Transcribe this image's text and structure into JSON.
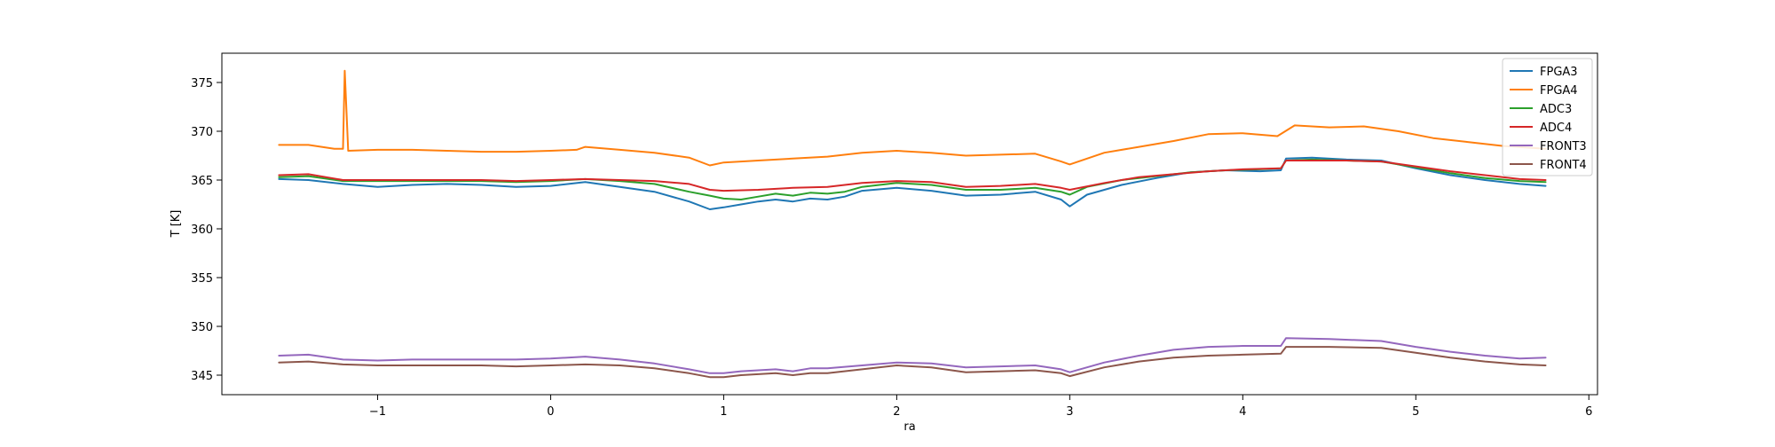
{
  "chart_data": {
    "type": "line",
    "title": "",
    "xlabel": "ra",
    "ylabel": "T [K]",
    "xlim": [
      -1.9,
      6.05
    ],
    "ylim": [
      343.0,
      378.0
    ],
    "xticks": [
      -1,
      0,
      1,
      2,
      3,
      4,
      5,
      6
    ],
    "xtick_labels": [
      "−1",
      "0",
      "1",
      "2",
      "3",
      "4",
      "5",
      "6"
    ],
    "yticks": [
      345,
      350,
      355,
      360,
      365,
      370,
      375
    ],
    "ytick_labels": [
      "345",
      "350",
      "355",
      "360",
      "365",
      "370",
      "375"
    ],
    "grid": false,
    "legend_position": "top-right",
    "series": [
      {
        "name": "FPGA3",
        "color": "#1f77b4",
        "x": [
          -1.57,
          -1.4,
          -1.2,
          -1.0,
          -0.8,
          -0.6,
          -0.4,
          -0.2,
          0.0,
          0.2,
          0.4,
          0.6,
          0.8,
          0.92,
          1.0,
          1.1,
          1.2,
          1.3,
          1.4,
          1.5,
          1.6,
          1.7,
          1.8,
          2.0,
          2.2,
          2.4,
          2.6,
          2.8,
          2.95,
          3.0,
          3.1,
          3.3,
          3.5,
          3.7,
          3.9,
          4.1,
          4.22,
          4.25,
          4.4,
          4.6,
          4.8,
          5.0,
          5.2,
          5.4,
          5.6,
          5.75
        ],
        "y": [
          365.1,
          365.0,
          364.6,
          364.3,
          364.5,
          364.6,
          364.5,
          364.3,
          364.4,
          364.8,
          364.3,
          363.8,
          362.8,
          362.0,
          362.2,
          362.5,
          362.8,
          363.0,
          362.8,
          363.1,
          363.0,
          363.3,
          363.9,
          364.2,
          363.9,
          363.4,
          363.5,
          363.8,
          363.0,
          362.3,
          363.5,
          364.5,
          365.2,
          365.8,
          366.0,
          365.9,
          366.0,
          367.2,
          367.3,
          367.1,
          367.0,
          366.2,
          365.5,
          365.0,
          364.6,
          364.4
        ]
      },
      {
        "name": "FPGA4",
        "color": "#ff7f0e",
        "x": [
          -1.57,
          -1.4,
          -1.25,
          -1.2,
          -1.19,
          -1.17,
          -1.0,
          -0.8,
          -0.6,
          -0.4,
          -0.2,
          0.0,
          0.15,
          0.2,
          0.4,
          0.6,
          0.8,
          0.92,
          1.0,
          1.2,
          1.4,
          1.6,
          1.8,
          2.0,
          2.2,
          2.4,
          2.6,
          2.8,
          2.95,
          3.0,
          3.2,
          3.4,
          3.6,
          3.8,
          4.0,
          4.2,
          4.3,
          4.5,
          4.7,
          4.9,
          5.1,
          5.3,
          5.5,
          5.75
        ],
        "y": [
          368.6,
          368.6,
          368.2,
          368.2,
          376.2,
          368.0,
          368.1,
          368.1,
          368.0,
          367.9,
          367.9,
          368.0,
          368.1,
          368.4,
          368.1,
          367.8,
          367.3,
          366.5,
          366.8,
          367.0,
          367.2,
          367.4,
          367.8,
          368.0,
          367.8,
          367.5,
          367.6,
          367.7,
          366.9,
          366.6,
          367.8,
          368.4,
          369.0,
          369.7,
          369.8,
          369.5,
          370.6,
          370.4,
          370.5,
          370.0,
          369.3,
          368.9,
          368.5,
          368.2
        ]
      },
      {
        "name": "ADC3",
        "color": "#2ca02c",
        "x": [
          -1.57,
          -1.4,
          -1.2,
          -1.0,
          -0.8,
          -0.6,
          -0.4,
          -0.2,
          0.0,
          0.2,
          0.4,
          0.6,
          0.8,
          0.92,
          1.0,
          1.1,
          1.2,
          1.3,
          1.4,
          1.5,
          1.6,
          1.7,
          1.8,
          2.0,
          2.2,
          2.4,
          2.6,
          2.8,
          2.95,
          3.0,
          3.1,
          3.3,
          3.5,
          3.7,
          3.9,
          4.1,
          4.22,
          4.25,
          4.4,
          4.6,
          4.8,
          5.0,
          5.2,
          5.4,
          5.6,
          5.75
        ],
        "y": [
          365.3,
          365.4,
          364.9,
          364.9,
          364.9,
          364.9,
          364.9,
          364.8,
          364.9,
          365.1,
          364.9,
          364.6,
          363.8,
          363.4,
          363.1,
          363.0,
          363.3,
          363.6,
          363.4,
          363.7,
          363.6,
          363.8,
          364.3,
          364.7,
          364.5,
          364.0,
          364.0,
          364.2,
          363.8,
          363.5,
          364.3,
          365.0,
          365.4,
          365.8,
          366.0,
          366.1,
          366.2,
          367.0,
          367.1,
          367.0,
          366.9,
          366.3,
          365.7,
          365.2,
          364.9,
          364.8
        ]
      },
      {
        "name": "ADC4",
        "color": "#d62728",
        "x": [
          -1.57,
          -1.4,
          -1.3,
          -1.2,
          -1.0,
          -0.8,
          -0.6,
          -0.4,
          -0.2,
          0.0,
          0.2,
          0.4,
          0.6,
          0.8,
          0.92,
          1.0,
          1.2,
          1.4,
          1.6,
          1.8,
          2.0,
          2.2,
          2.4,
          2.6,
          2.8,
          2.95,
          3.0,
          3.2,
          3.4,
          3.6,
          3.8,
          4.0,
          4.22,
          4.25,
          4.4,
          4.6,
          4.8,
          5.0,
          5.2,
          5.4,
          5.6,
          5.75
        ],
        "y": [
          365.5,
          365.6,
          365.3,
          365.0,
          365.0,
          365.0,
          365.0,
          365.0,
          364.9,
          365.0,
          365.1,
          365.0,
          364.9,
          364.6,
          364.0,
          363.9,
          364.0,
          364.2,
          364.3,
          364.7,
          364.9,
          364.8,
          364.3,
          364.4,
          364.6,
          364.2,
          364.0,
          364.7,
          365.3,
          365.6,
          365.9,
          366.1,
          366.2,
          367.0,
          367.0,
          367.0,
          366.9,
          366.4,
          365.9,
          365.5,
          365.1,
          365.0
        ]
      },
      {
        "name": "FRONT3",
        "color": "#9467bd",
        "x": [
          -1.57,
          -1.4,
          -1.2,
          -1.0,
          -0.8,
          -0.6,
          -0.4,
          -0.2,
          0.0,
          0.2,
          0.4,
          0.6,
          0.8,
          0.92,
          1.0,
          1.1,
          1.2,
          1.3,
          1.4,
          1.5,
          1.6,
          1.8,
          2.0,
          2.2,
          2.4,
          2.6,
          2.8,
          2.95,
          3.0,
          3.2,
          3.4,
          3.6,
          3.8,
          4.0,
          4.22,
          4.25,
          4.5,
          4.8,
          5.0,
          5.2,
          5.4,
          5.6,
          5.75
        ],
        "y": [
          347.0,
          347.1,
          346.6,
          346.5,
          346.6,
          346.6,
          346.6,
          346.6,
          346.7,
          346.9,
          346.6,
          346.2,
          345.6,
          345.2,
          345.2,
          345.4,
          345.5,
          345.6,
          345.4,
          345.7,
          345.7,
          346.0,
          346.3,
          346.2,
          345.8,
          345.9,
          346.0,
          345.6,
          345.3,
          346.3,
          347.0,
          347.6,
          347.9,
          348.0,
          348.0,
          348.8,
          348.7,
          348.5,
          347.9,
          347.4,
          347.0,
          346.7,
          346.8
        ]
      },
      {
        "name": "FRONT4",
        "color": "#8c564b",
        "x": [
          -1.57,
          -1.4,
          -1.2,
          -1.0,
          -0.8,
          -0.6,
          -0.4,
          -0.2,
          0.0,
          0.2,
          0.4,
          0.6,
          0.8,
          0.92,
          1.0,
          1.1,
          1.2,
          1.3,
          1.4,
          1.5,
          1.6,
          1.8,
          2.0,
          2.2,
          2.4,
          2.6,
          2.8,
          2.95,
          3.0,
          3.2,
          3.4,
          3.6,
          3.8,
          4.0,
          4.22,
          4.25,
          4.5,
          4.8,
          5.0,
          5.2,
          5.4,
          5.6,
          5.75
        ],
        "y": [
          346.3,
          346.4,
          346.1,
          346.0,
          346.0,
          346.0,
          346.0,
          345.9,
          346.0,
          346.1,
          346.0,
          345.7,
          345.2,
          344.8,
          344.8,
          345.0,
          345.1,
          345.2,
          345.0,
          345.2,
          345.2,
          345.6,
          346.0,
          345.8,
          345.3,
          345.4,
          345.5,
          345.2,
          344.9,
          345.8,
          346.4,
          346.8,
          347.0,
          347.1,
          347.2,
          347.9,
          347.9,
          347.8,
          347.3,
          346.8,
          346.4,
          346.1,
          346.0
        ]
      }
    ]
  }
}
